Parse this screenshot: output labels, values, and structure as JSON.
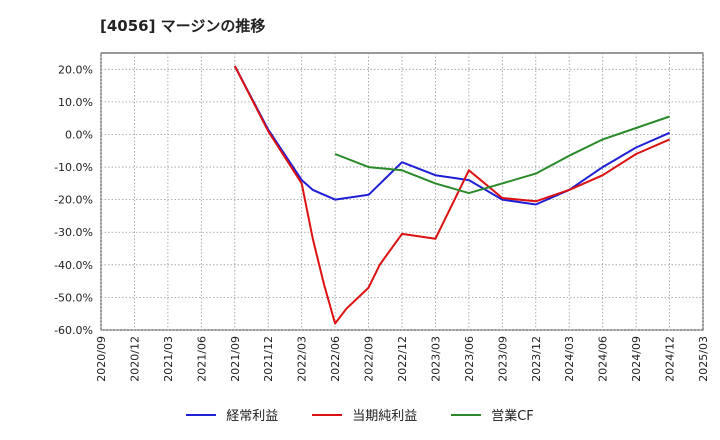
{
  "chart_data": {
    "type": "line",
    "title": "[4056]  マージンの推移",
    "xlabel": "",
    "ylabel": "",
    "ylim": [
      -60,
      25
    ],
    "y_ticks": [
      20,
      10,
      0,
      -10,
      -20,
      -30,
      -40,
      -50,
      -60
    ],
    "y_tick_labels": [
      "20.0%",
      "10.0%",
      "0.0%",
      "-10.0%",
      "-20.0%",
      "-30.0%",
      "-40.0%",
      "-50.0%",
      "-60.0%"
    ],
    "x_ticks": [
      "2020/09",
      "2020/12",
      "2021/03",
      "2021/06",
      "2021/09",
      "2021/12",
      "2022/03",
      "2022/06",
      "2022/09",
      "2022/12",
      "2023/03",
      "2023/06",
      "2023/09",
      "2023/12",
      "2024/03",
      "2024/06",
      "2024/09",
      "2024/12",
      "2025/03"
    ],
    "grid": true,
    "legend_position": "bottom",
    "series": [
      {
        "name": "経常利益",
        "color": "#1f1fd6",
        "points": [
          [
            "2021/09",
            21.0
          ],
          [
            "2021/12",
            1.5
          ],
          [
            "2022/03",
            -14.0
          ],
          [
            "2022/04",
            -17.0
          ],
          [
            "2022/06",
            -20.0
          ],
          [
            "2022/09",
            -18.5
          ],
          [
            "2022/12",
            -8.5
          ],
          [
            "2023/03",
            -12.5
          ],
          [
            "2023/06",
            -14.0
          ],
          [
            "2023/09",
            -20.0
          ],
          [
            "2023/12",
            -21.5
          ],
          [
            "2024/03",
            -17.0
          ],
          [
            "2024/06",
            -10.0
          ],
          [
            "2024/09",
            -4.0
          ],
          [
            "2024/12",
            0.5
          ]
        ]
      },
      {
        "name": "当期純利益",
        "color": "#dd1111",
        "points": [
          [
            "2021/09",
            21.0
          ],
          [
            "2021/12",
            1.0
          ],
          [
            "2022/03",
            -15.0
          ],
          [
            "2022/04",
            -32.0
          ],
          [
            "2022/05",
            -46.0
          ],
          [
            "2022/06",
            -58.0
          ],
          [
            "2022/07",
            -53.5
          ],
          [
            "2022/09",
            -47.0
          ],
          [
            "2022/10",
            -40.0
          ],
          [
            "2022/12",
            -30.5
          ],
          [
            "2023/03",
            -32.0
          ],
          [
            "2023/06",
            -11.0
          ],
          [
            "2023/09",
            -19.5
          ],
          [
            "2023/12",
            -20.5
          ],
          [
            "2024/03",
            -17.0
          ],
          [
            "2024/06",
            -12.5
          ],
          [
            "2024/09",
            -6.0
          ],
          [
            "2024/12",
            -1.5
          ]
        ]
      },
      {
        "name": "営業CF",
        "color": "#2a8a2a",
        "points": [
          [
            "2022/06",
            -6.0
          ],
          [
            "2022/09",
            -10.0
          ],
          [
            "2022/12",
            -11.0
          ],
          [
            "2023/03",
            -15.0
          ],
          [
            "2023/06",
            -18.0
          ],
          [
            "2023/09",
            -15.0
          ],
          [
            "2023/12",
            -12.0
          ],
          [
            "2024/03",
            -6.5
          ],
          [
            "2024/06",
            -1.5
          ],
          [
            "2024/09",
            2.0
          ],
          [
            "2024/12",
            5.5
          ]
        ]
      }
    ]
  }
}
